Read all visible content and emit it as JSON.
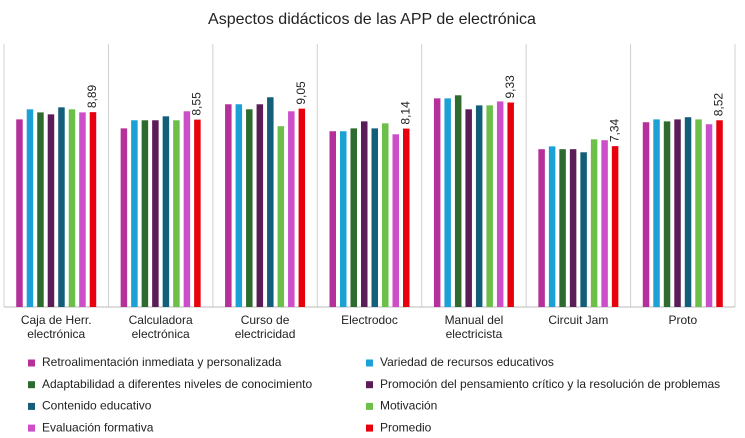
{
  "chart_data": {
    "type": "grouped-bar",
    "title": "Aspectos didácticos de las APP de electrónica",
    "categories": [
      "Caja de Herr. electrónica",
      "Calculadora electrónica",
      "Curso de electricidad",
      "Electrodoc",
      "Manual del electricista",
      "Circuit Jam",
      "Proto"
    ],
    "ylim": [
      0,
      12
    ],
    "series": [
      {
        "name": "Retroalimentación inmediata y personalizada",
        "color": "#b5309a",
        "values": [
          8.56,
          8.15,
          9.25,
          8.02,
          9.52,
          7.2,
          8.43
        ]
      },
      {
        "name": "Variedad de recursos educativos",
        "color": "#1ba1d6",
        "values": [
          9.02,
          8.52,
          9.25,
          8.02,
          9.52,
          7.33,
          8.56
        ]
      },
      {
        "name": "Adaptabilidad a diferentes niveles de conocimiento",
        "color": "#2e6b2e",
        "values": [
          8.88,
          8.52,
          9.02,
          8.15,
          9.66,
          7.2,
          8.47
        ]
      },
      {
        "name": "Promoción del pensamiento crítico y la resolución de problemas",
        "color": "#5b1c57",
        "values": [
          8.79,
          8.52,
          9.25,
          8.47,
          9.02,
          7.2,
          8.56
        ]
      },
      {
        "name": "Contenido educativo",
        "color": "#135f7a",
        "values": [
          9.11,
          8.7,
          9.57,
          8.15,
          9.2,
          7.06,
          8.66
        ]
      },
      {
        "name": "Motivación",
        "color": "#6cc04a",
        "values": [
          9.02,
          8.52,
          8.25,
          8.38,
          9.2,
          7.65,
          8.56
        ]
      },
      {
        "name": "Evaluación formativa",
        "color": "#cc4fc9",
        "values": [
          8.88,
          8.93,
          8.93,
          7.88,
          9.38,
          7.61,
          8.34
        ]
      },
      {
        "name": "Promedio",
        "color": "#e8000f",
        "values": [
          8.89,
          8.55,
          9.05,
          8.14,
          9.33,
          7.34,
          8.52
        ],
        "value_labels": [
          "8,89",
          "8,55",
          "9,05",
          "8,14",
          "9,33",
          "7,34",
          "8,52"
        ]
      }
    ]
  }
}
